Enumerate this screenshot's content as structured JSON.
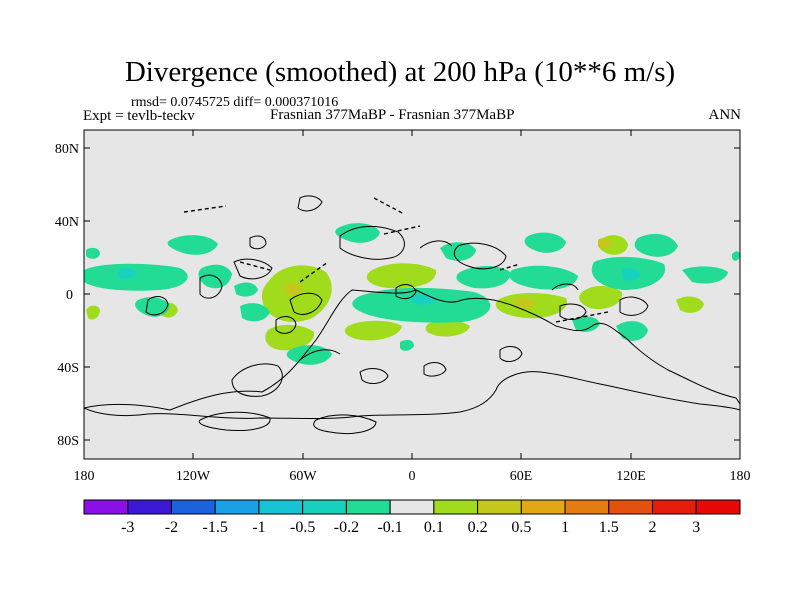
{
  "title": "Divergence (smoothed) at 200 hPa (10**6 m/s)",
  "stats": "rmsd= 0.0745725 diff= 0.000371016",
  "experiment": "Expt = tevlb-teckv",
  "case": "Frasnian 377MaBP - Frasnian 377MaBP",
  "period": "ANN",
  "map": {
    "lat_ticks": [
      "80N",
      "40N",
      "0",
      "40S",
      "80S"
    ],
    "lon_ticks": [
      "180",
      "120W",
      "60W",
      "0",
      "60E",
      "120E",
      "180"
    ],
    "background_color": "#e6e6e6"
  },
  "colorbar": {
    "labels": [
      "-3",
      "-2",
      "-1.5",
      "-1",
      "-0.5",
      "-0.2",
      "-0.1",
      "0.1",
      "0.2",
      "0.5",
      "1",
      "1.5",
      "2",
      "3"
    ],
    "colors": [
      "#8b10e8",
      "#3a18d6",
      "#1c62de",
      "#1aa0e4",
      "#16c4d4",
      "#18d2c0",
      "#22dc96",
      "#e6e6e6",
      "#a0dc1c",
      "#c4c81a",
      "#e2a814",
      "#e47c10",
      "#e6500e",
      "#e61c0c",
      "#e80808"
    ]
  }
}
